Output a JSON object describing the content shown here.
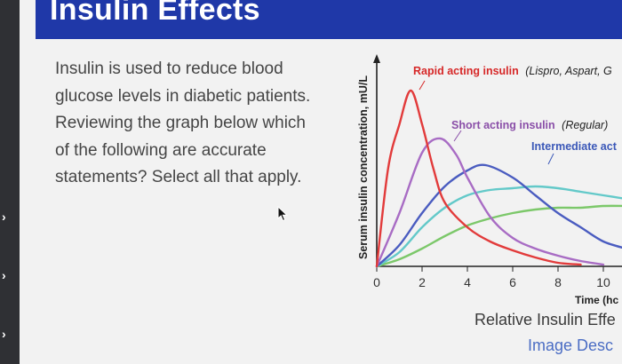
{
  "header": {
    "title": "Insulin Effects"
  },
  "question": {
    "lines": [
      "Insulin is used to reduce blood",
      "glucose levels in diabetic patients.",
      " Reviewing the graph below which",
      "of the following are accurate",
      "statements? Select all that apply."
    ]
  },
  "side_arrows": [
    "›",
    "›",
    "›"
  ],
  "colors": {
    "rapid": "#e23b3b",
    "short": "#a86cc4",
    "intermediate_dark": "#4a5cc0",
    "intermediate_teal": "#63c9c9",
    "long": "#7cc86a",
    "header_bg": "#1f38a8",
    "label_red": "#d62828",
    "label_purple": "#8a4fa8",
    "label_blue": "#3b58b8"
  },
  "chart_data": {
    "type": "line",
    "ylabel": "Serum insulin concentration, mU/L",
    "xlabel": "Time (hc",
    "x_ticks": [
      "0",
      "2",
      "4",
      "6",
      "8",
      "10"
    ],
    "xlim": [
      0,
      10
    ],
    "labels": {
      "rapid_bold": "Rapid acting insulin",
      "rapid_italic": "(Lispro, Aspart, G",
      "short_bold": "Short acting insulin",
      "short_italic": "(Regular)",
      "intermediate": "Intermediate act"
    },
    "series": [
      {
        "name": "Rapid acting insulin (Lispro, Aspart, G",
        "color_key": "rapid",
        "points": [
          [
            0,
            0
          ],
          [
            0.5,
            55
          ],
          [
            1,
            80
          ],
          [
            1.5,
            99
          ],
          [
            2,
            80
          ],
          [
            2.5,
            55
          ],
          [
            3,
            36
          ],
          [
            4,
            22
          ],
          [
            5,
            14
          ],
          [
            6,
            9
          ],
          [
            7,
            5
          ],
          [
            8,
            2
          ],
          [
            9,
            1
          ]
        ]
      },
      {
        "name": "Short acting insulin (Regular)",
        "color_key": "short",
        "points": [
          [
            0,
            0
          ],
          [
            1,
            30
          ],
          [
            2,
            64
          ],
          [
            2.8,
            72
          ],
          [
            3.5,
            63
          ],
          [
            4,
            50
          ],
          [
            5,
            28
          ],
          [
            6,
            16
          ],
          [
            7,
            10
          ],
          [
            8,
            6
          ],
          [
            9,
            3
          ],
          [
            10,
            1
          ]
        ]
      },
      {
        "name": "Intermediate act",
        "color_key": "intermediate_dark",
        "points": [
          [
            0,
            0
          ],
          [
            1,
            12
          ],
          [
            2,
            30
          ],
          [
            3,
            45
          ],
          [
            4,
            54
          ],
          [
            4.8,
            57
          ],
          [
            6,
            50
          ],
          [
            7,
            40
          ],
          [
            8,
            30
          ],
          [
            9,
            22
          ],
          [
            10,
            14
          ],
          [
            11,
            10
          ]
        ]
      },
      {
        "name": "",
        "color_key": "intermediate_teal",
        "points": [
          [
            0,
            0
          ],
          [
            1,
            8
          ],
          [
            2,
            22
          ],
          [
            3,
            33
          ],
          [
            4,
            40
          ],
          [
            5,
            43
          ],
          [
            6,
            44
          ],
          [
            7,
            45
          ],
          [
            8,
            44
          ],
          [
            9,
            42
          ],
          [
            10,
            40
          ],
          [
            11,
            38
          ]
        ]
      },
      {
        "name": "",
        "color_key": "long",
        "points": [
          [
            0,
            0
          ],
          [
            1,
            4
          ],
          [
            2,
            10
          ],
          [
            3,
            17
          ],
          [
            4,
            23
          ],
          [
            5,
            27
          ],
          [
            6,
            30
          ],
          [
            7,
            32
          ],
          [
            8,
            33
          ],
          [
            9,
            33
          ],
          [
            10,
            34
          ],
          [
            11,
            34
          ]
        ]
      }
    ]
  },
  "footer": {
    "caption": "Relative Insulin Effe",
    "image_desc": "Image Desc"
  }
}
